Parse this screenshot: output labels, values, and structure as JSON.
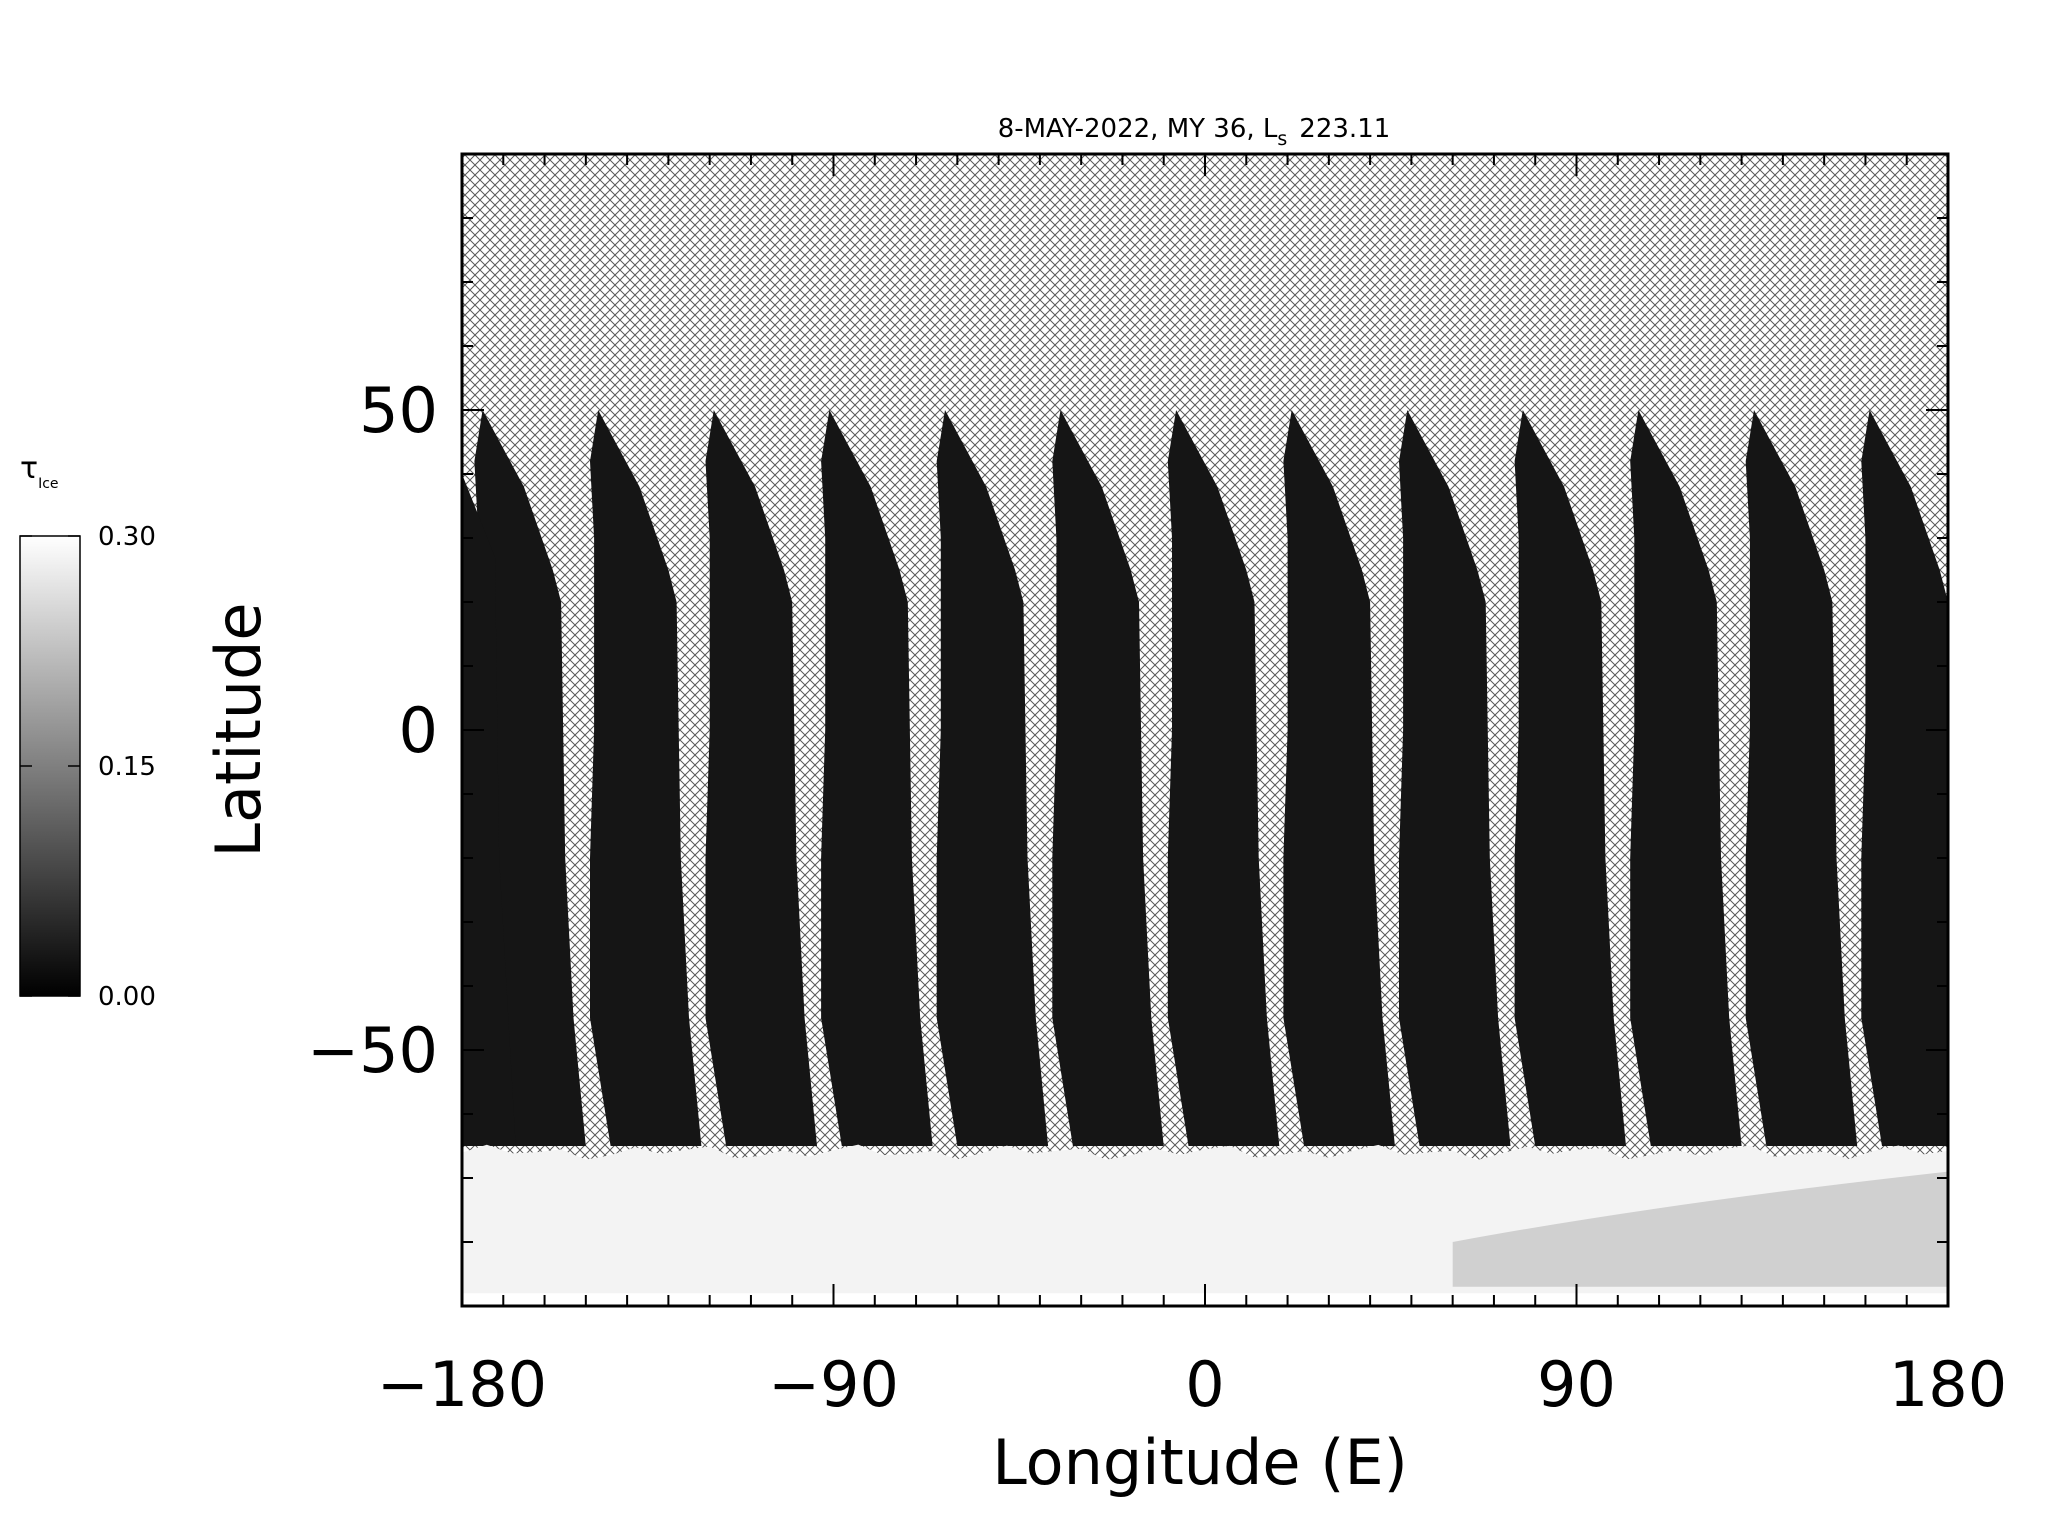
{
  "chart_data": {
    "type": "heatmap",
    "title": "8-MAY-2022, MY 36,  L",
    "title_subscript": "s",
    "title_value": "223.11",
    "xlabel": "Longitude (E)",
    "ylabel": "Latitude",
    "xlim": [
      -180,
      180
    ],
    "ylim": [
      -90,
      90
    ],
    "x_ticks": [
      -180,
      -90,
      0,
      90,
      180
    ],
    "x_tick_labels": [
      "−180",
      "−90",
      "0",
      "90",
      "180"
    ],
    "y_ticks": [
      -50,
      0,
      50
    ],
    "y_tick_labels": [
      "−50",
      "0",
      "50"
    ],
    "x_minor_step": 10,
    "y_minor_step": 10,
    "grid": false,
    "colorbar": {
      "label": "τ",
      "label_subscript": "Ice",
      "min": 0.0,
      "max": 0.3,
      "ticks": [
        0.0,
        0.15,
        0.3
      ],
      "tick_labels": [
        "0.00",
        "0.15",
        "0.30"
      ],
      "colormap": "grayscale",
      "placement": "left"
    },
    "no_data_pattern": "crosshatch",
    "orbit_swaths": {
      "count": 13,
      "description_value_range": [
        0.0,
        0.05
      ],
      "start_longitudes": [
        -175,
        -147,
        -119,
        -91,
        -63,
        -35,
        -7,
        21,
        49,
        77,
        105,
        133,
        161
      ],
      "top_latitude": 50,
      "bottom_latitude": -65
    },
    "south_polar_cap": {
      "lat_range": [
        -90,
        -66
      ],
      "tau_ice": 0.3
    }
  },
  "colors": {
    "background": "#ffffff",
    "axis": "#000000",
    "hatch": "#5a5a5a",
    "swath": "#151515",
    "cap": "#f3f3f3"
  }
}
